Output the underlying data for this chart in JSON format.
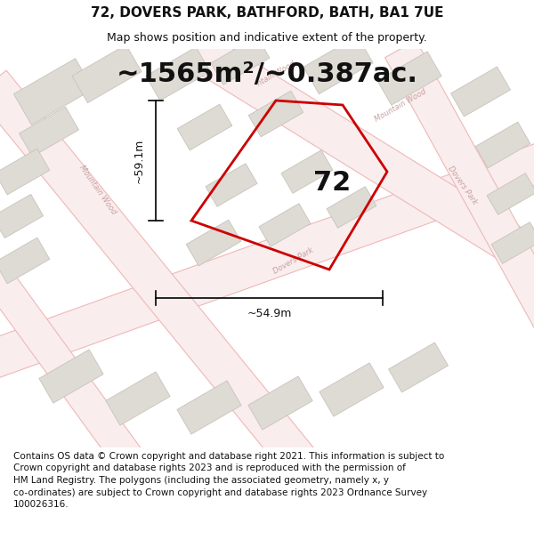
{
  "title": "72, DOVERS PARK, BATHFORD, BATH, BA1 7UE",
  "subtitle": "Map shows position and indicative extent of the property.",
  "area_text": "~1565m²/~0.387ac.",
  "label_72": "72",
  "dim_horizontal": "~54.9m",
  "dim_vertical": "~59.1m",
  "footer_text": "Contains OS data © Crown copyright and database right 2021. This information is subject to\nCrown copyright and database rights 2023 and is reproduced with the permission of\nHM Land Registry. The polygons (including the associated geometry, namely x, y\nco-ordinates) are subject to Crown copyright and database rights 2023 Ordnance Survey\n100026316.",
  "map_bg": "#f7f5f2",
  "road_outline": "#f0b8b8",
  "road_fill": "#f9eded",
  "building_fill": "#dedad4",
  "building_edge": "#c8c4bc",
  "property_edge": "#cc0000",
  "road_label": "#c8a0a0",
  "text_dark": "#111111",
  "title_fs": 11,
  "subtitle_fs": 9,
  "area_fs": 22,
  "num72_fs": 22,
  "dim_fs": 9,
  "footer_fs": 7.5,
  "road_label_fs": 6
}
